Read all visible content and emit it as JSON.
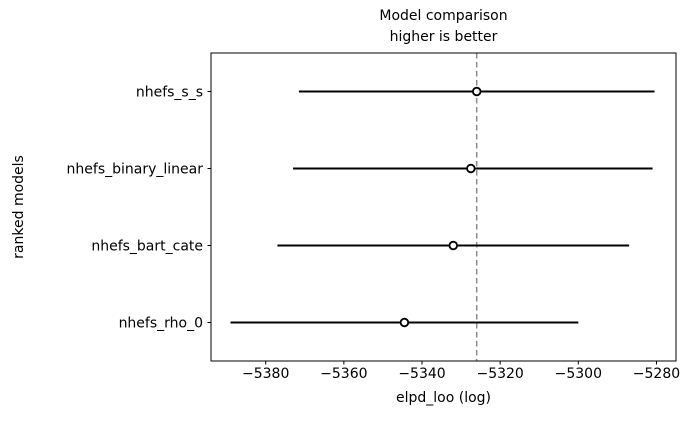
{
  "chart_data": {
    "type": "scatter",
    "variant": "horizontal-errorbar-forest-model-comparison",
    "title_lines": [
      "Model comparison",
      "higher is better"
    ],
    "xlabel": "elpd_loo (log)",
    "ylabel": "ranked models",
    "models": [
      {
        "name": "nhefs_s_s",
        "elpd_loo": -5326.0,
        "ci": [
          -5371.5,
          -5280.5
        ]
      },
      {
        "name": "nhefs_binary_linear",
        "elpd_loo": -5327.5,
        "ci": [
          -5373.0,
          -5281.0
        ]
      },
      {
        "name": "nhefs_bart_cate",
        "elpd_loo": -5332.0,
        "ci": [
          -5377.0,
          -5287.0
        ]
      },
      {
        "name": "nhefs_rho_0",
        "elpd_loo": -5344.5,
        "ci": [
          -5389.0,
          -5300.0
        ]
      }
    ],
    "reference_line": {
      "value": -5326.0,
      "style": "dashed",
      "color": "#8c8c8c"
    },
    "x_ticks": [
      -5380,
      -5360,
      -5340,
      -5320,
      -5300,
      -5280
    ],
    "xlim": [
      -5394,
      -5275
    ],
    "grid": false,
    "legend": null,
    "marker": {
      "shape": "circle-open",
      "fill": "#ffffff",
      "stroke": "#000000"
    },
    "colors": {
      "errorbar": "#000000",
      "text": "#000000",
      "background": "#ffffff",
      "spine": "#000000"
    }
  }
}
